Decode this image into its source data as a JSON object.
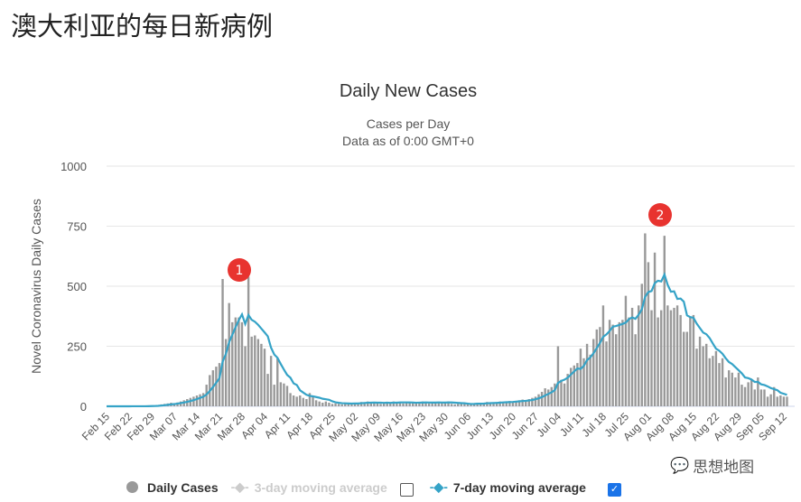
{
  "page_title": "澳大利亚的每日新病例",
  "watermark": "思想地图",
  "legend": {
    "daily": "Daily Cases",
    "ma3": "3-day moving average",
    "ma7": "7-day moving average",
    "ma3_checked": false,
    "ma7_checked": true,
    "check_mark": "✓"
  },
  "annotations": [
    {
      "label": "1",
      "date": "Mar 30"
    },
    {
      "label": "2",
      "date": "Aug 06"
    }
  ],
  "colors": {
    "bars": "#999999",
    "line": "#35a3c7",
    "annotation": "#e8332f",
    "grid": "#e6e6e6"
  },
  "chart_data": {
    "type": "bar",
    "title": "Daily New Cases",
    "subtitle": [
      "Cases per Day",
      "Data as of 0:00 GMT+0"
    ],
    "ylabel": "Novel Coronavirus Daily Cases",
    "ylim": [
      0,
      1000
    ],
    "yticks": [
      "0",
      "250",
      "500",
      "750",
      "1000"
    ],
    "grid": true,
    "start_date": "Feb 15",
    "xticks": [
      "Feb 15",
      "Feb 22",
      "Feb 29",
      "Mar 07",
      "Mar 14",
      "Mar 21",
      "Mar 28",
      "Apr 04",
      "Apr 11",
      "Apr 18",
      "Apr 25",
      "May 02",
      "May 09",
      "May 16",
      "May 23",
      "May 30",
      "Jun 06",
      "Jun 13",
      "Jun 20",
      "Jun 27",
      "Jul 04",
      "Jul 11",
      "Jul 18",
      "Jul 25",
      "Aug 01",
      "Aug 08",
      "Aug 15",
      "Aug 22",
      "Aug 29",
      "Sep 05",
      "Sep 12"
    ],
    "series": [
      {
        "name": "Daily Cases",
        "values": [
          0,
          0,
          0,
          0,
          0,
          0,
          0,
          0,
          1,
          0,
          0,
          0,
          1,
          2,
          2,
          3,
          5,
          8,
          10,
          12,
          15,
          12,
          16,
          20,
          25,
          30,
          35,
          40,
          45,
          50,
          55,
          90,
          130,
          150,
          165,
          180,
          530,
          280,
          430,
          350,
          370,
          370,
          350,
          250,
          540,
          290,
          295,
          280,
          260,
          240,
          135,
          210,
          90,
          200,
          100,
          95,
          85,
          55,
          45,
          40,
          45,
          35,
          30,
          55,
          40,
          25,
          20,
          15,
          20,
          15,
          10,
          12,
          10,
          8,
          12,
          15,
          12,
          15,
          10,
          18,
          14,
          20,
          16,
          15,
          12,
          10,
          14,
          18,
          16,
          20,
          15,
          18,
          12,
          14,
          16,
          15,
          14,
          18,
          20,
          15,
          12,
          14,
          16,
          18,
          15,
          18,
          20,
          10,
          8,
          10,
          12,
          10,
          8,
          10,
          12,
          14,
          10,
          15,
          18,
          14,
          12,
          16,
          20,
          18,
          20,
          22,
          18,
          22,
          25,
          28,
          25,
          30,
          35,
          40,
          50,
          60,
          75,
          70,
          80,
          95,
          250,
          110,
          95,
          135,
          160,
          170,
          180,
          240,
          200,
          260,
          215,
          280,
          320,
          330,
          420,
          270,
          360,
          340,
          300,
          350,
          360,
          460,
          370,
          410,
          300,
          420,
          510,
          720,
          600,
          400,
          640,
          370,
          400,
          710,
          420,
          400,
          410,
          420,
          380,
          310,
          310,
          370,
          380,
          240,
          290,
          250,
          260,
          200,
          210,
          230,
          180,
          200,
          120,
          150,
          140,
          120,
          140,
          90,
          80,
          100,
          110,
          70,
          120,
          70,
          70,
          40,
          50,
          80,
          40,
          45,
          40,
          40
        ]
      },
      {
        "name": "7-day moving average",
        "derived": "7-day mean of Daily Cases"
      }
    ]
  }
}
